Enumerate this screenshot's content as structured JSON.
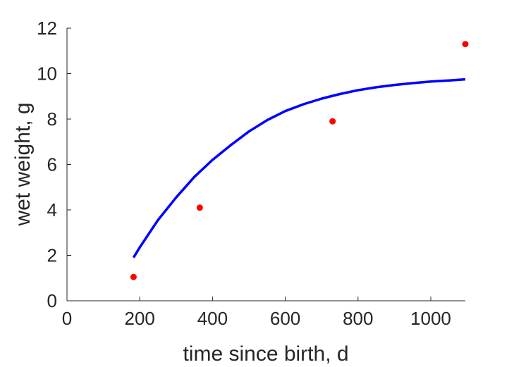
{
  "chart_data": {
    "type": "scatter",
    "title": "",
    "xlabel": "time since birth, d",
    "ylabel": "wet weight, g",
    "xlim": [
      0,
      1095
    ],
    "ylim": [
      0,
      12
    ],
    "xticks": [
      0,
      200,
      400,
      600,
      800,
      1000
    ],
    "yticks": [
      0,
      2,
      4,
      6,
      8,
      10,
      12
    ],
    "grid": false,
    "legend": "none",
    "series": [
      {
        "type": "scatter",
        "color": "#ff0000",
        "x": [
          183,
          365,
          730,
          1095
        ],
        "y": [
          1.05,
          4.1,
          7.9,
          11.3
        ]
      },
      {
        "type": "line",
        "color": "#0000ff",
        "x": [
          183,
          200,
          250,
          300,
          350,
          400,
          450,
          500,
          550,
          600,
          650,
          700,
          750,
          800,
          850,
          900,
          950,
          1000,
          1050,
          1095
        ],
        "y": [
          1.9,
          2.35,
          3.55,
          4.55,
          5.45,
          6.2,
          6.85,
          7.45,
          7.95,
          8.35,
          8.65,
          8.9,
          9.1,
          9.27,
          9.4,
          9.5,
          9.58,
          9.65,
          9.7,
          9.75
        ]
      }
    ]
  }
}
